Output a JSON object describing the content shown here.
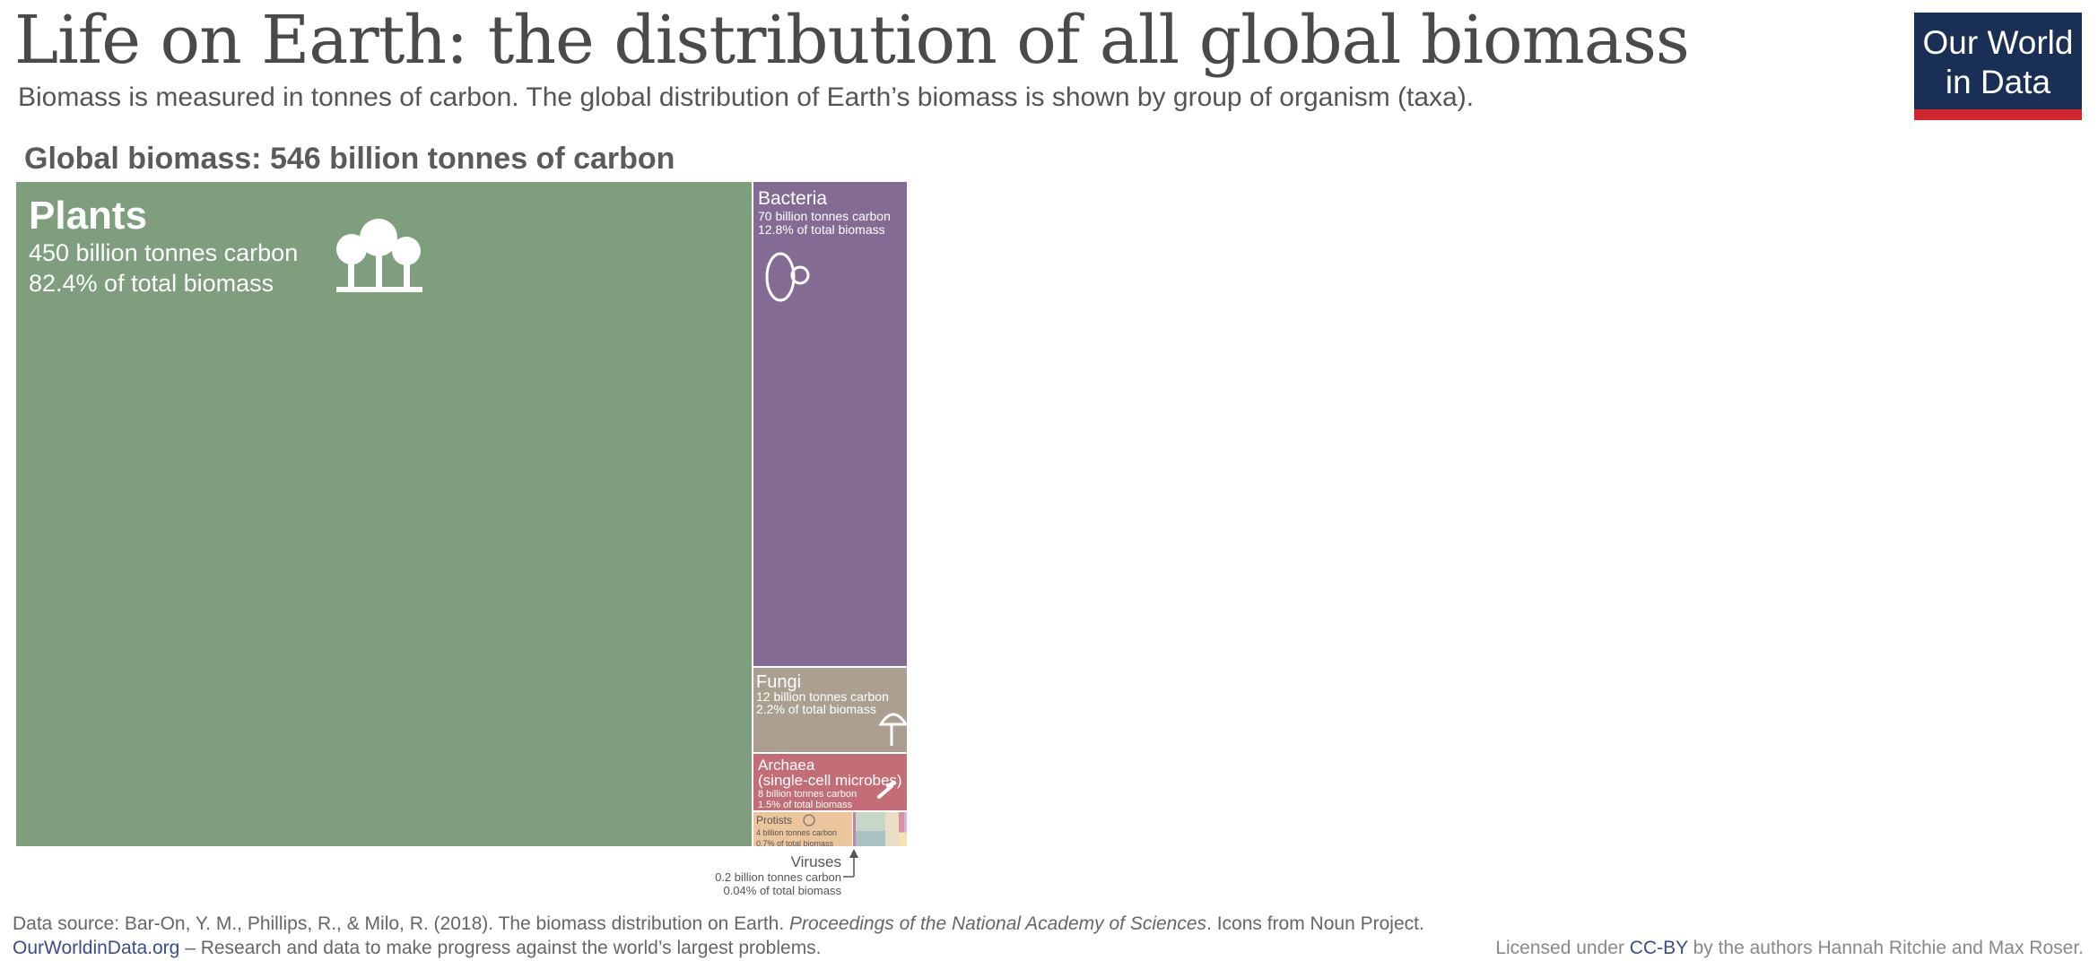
{
  "title": "Life on Earth: the distribution of all global biomass",
  "subtitle": "Biomass is measured in tonnes of carbon. The global distribution of Earth’s biomass is shown by group of organism (taxa).",
  "logo": {
    "line1": "Our World",
    "line2": "in Data",
    "bg": "#1a2f56",
    "bar": "#d2262f"
  },
  "total_label": "Global biomass: 546 billion tonnes of carbon",
  "footer": {
    "source_prefix": "Data source: Bar-On, Y. M., Phillips, R., & Milo, R. (2018). The biomass distribution on Earth. ",
    "source_journal": "Proceedings of the National Academy of Sciences",
    "source_suffix": ". Icons from Noun Project.",
    "site": "OurWorldinData.org",
    "tagline": " – Research and data to make progress against the world’s largest problems.",
    "license_prefix": "Licensed under ",
    "license_link": "CC-BY",
    "license_suffix": " by the authors Hannah Ritchie and Max Roser."
  },
  "chart_data": {
    "type": "treemap",
    "unit": "billion tonnes carbon",
    "total": 546,
    "items": [
      {
        "name": "Plants",
        "value": 450,
        "share": 82.4,
        "amount_label": "450 billion tonnes carbon",
        "share_label": "82.4% of total biomass",
        "color": "#7e9e7d",
        "icon": "trees-icon"
      },
      {
        "name": "Bacteria",
        "value": 70,
        "share": 12.8,
        "amount_label": "70 billion tonnes carbon",
        "share_label": "12.8% of total biomass",
        "color": "#846b94",
        "icon": "bacteria-icon"
      },
      {
        "name": "Fungi",
        "value": 12,
        "share": 2.2,
        "amount_label": "12 billion tonnes carbon",
        "share_label": "2.2% of total biomass",
        "color": "#ab9f8f",
        "icon": "mushroom-icon"
      },
      {
        "name": "Archaea",
        "name2": "(single-cell microbes)",
        "value": 8,
        "share": 1.5,
        "amount_label": "8 billion tonnes carbon",
        "share_label": "1.5% of total biomass",
        "color": "#c36d77",
        "icon": "archaea-icon"
      },
      {
        "name": "Protists",
        "value": 4,
        "share": 0.7,
        "amount_label": "4 billion tonnes carbon",
        "share_label": "0.7% of total biomass",
        "color": "#ebc59c",
        "icon": "protist-icon"
      },
      {
        "name": "Viruses",
        "value": 0.2,
        "share": 0.04,
        "amount_label": "0.2 billion tonnes carbon",
        "share_label": "0.04% of total biomass",
        "color": "#c9809a",
        "icon": ""
      }
    ],
    "unlabeled_small_groups_colors": [
      "#c5d8c8",
      "#a9c2c6",
      "#e9dfc7",
      "#d98fa6",
      "#cfb8d3",
      "#f3e3b0"
    ]
  }
}
